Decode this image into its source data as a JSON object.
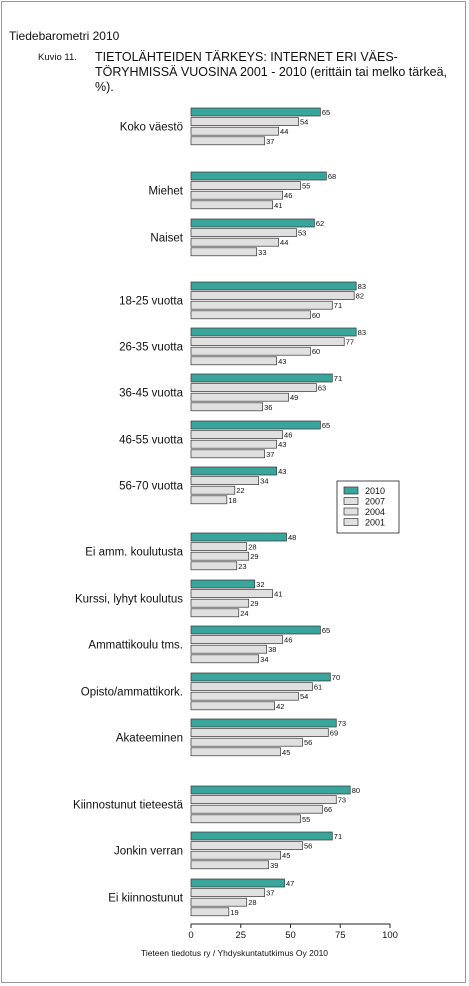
{
  "header": "Tiedebarometri 2010",
  "figure_label": "Kuvio 11.",
  "title": "TIETOLÄHTEIDEN TÄRKEYS: INTERNET ERI VÄES-TÖRYHMISSÄ VUOSINA 2001 - 2010 (erittäin tai melko tärkeä, %).",
  "footer": "Tieteen tiedotus ry / Yhdyskuntatutkimus Oy 2010",
  "colors": {
    "2010": "#3aa59a",
    "other": "#e0e0e0",
    "stroke": "#333333"
  },
  "chart_data": {
    "type": "bar",
    "orientation": "horizontal",
    "xlim": [
      0,
      100
    ],
    "xticks": [
      0,
      25,
      50,
      75,
      100
    ],
    "legend_position": "right",
    "series_names": [
      "2010",
      "2007",
      "2004",
      "2001"
    ],
    "categories": [
      {
        "label": "Koko väestö",
        "values": [
          65,
          54,
          44,
          37
        ]
      },
      {
        "label": "Miehet",
        "values": [
          68,
          55,
          46,
          41
        ]
      },
      {
        "label": "Naiset",
        "values": [
          62,
          53,
          44,
          33
        ]
      },
      {
        "label": "18-25 vuotta",
        "values": [
          83,
          82,
          71,
          60
        ]
      },
      {
        "label": "26-35 vuotta",
        "values": [
          83,
          77,
          60,
          43
        ]
      },
      {
        "label": "36-45 vuotta",
        "values": [
          71,
          63,
          49,
          36
        ]
      },
      {
        "label": "46-55 vuotta",
        "values": [
          65,
          46,
          43,
          37
        ]
      },
      {
        "label": "56-70 vuotta",
        "values": [
          43,
          34,
          22,
          18
        ]
      },
      {
        "label": "Ei amm. koulutusta",
        "values": [
          48,
          28,
          29,
          23
        ]
      },
      {
        "label": "Kurssi, lyhyt koulutus",
        "values": [
          32,
          41,
          29,
          24
        ]
      },
      {
        "label": "Ammattikoulu tms.",
        "values": [
          65,
          46,
          38,
          34
        ]
      },
      {
        "label": "Opisto/ammattikork.",
        "values": [
          70,
          61,
          54,
          42
        ]
      },
      {
        "label": "Akateeminen",
        "values": [
          73,
          69,
          56,
          45
        ]
      },
      {
        "label": "Kiinnostunut tieteestä",
        "values": [
          80,
          73,
          66,
          55
        ]
      },
      {
        "label": "Jonkin verran",
        "values": [
          71,
          56,
          45,
          39
        ]
      },
      {
        "label": "Ei kiinnostunut",
        "values": [
          47,
          37,
          28,
          19
        ]
      }
    ]
  }
}
